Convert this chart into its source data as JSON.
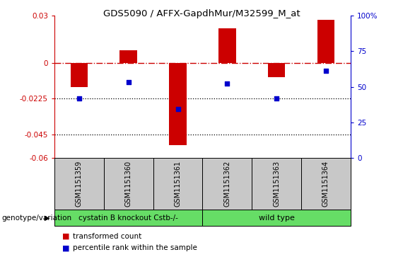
{
  "title": "GDS5090 / AFFX-GapdhMur/M32599_M_at",
  "samples": [
    "GSM1151359",
    "GSM1151360",
    "GSM1151361",
    "GSM1151362",
    "GSM1151363",
    "GSM1151364"
  ],
  "bar_values": [
    -0.015,
    0.008,
    -0.052,
    0.022,
    -0.009,
    0.027
  ],
  "dot_values_left": [
    -0.0225,
    -0.012,
    -0.029,
    -0.013,
    -0.0225,
    -0.005
  ],
  "bar_color": "#cc0000",
  "dot_color": "#0000cc",
  "ylim_left": [
    -0.06,
    0.03
  ],
  "ylim_right": [
    0,
    100
  ],
  "yticks_left": [
    0.03,
    0,
    -0.0225,
    -0.045,
    -0.06
  ],
  "ytick_labels_left": [
    "0.03",
    "0",
    "-0.0225",
    "-0.045",
    "-0.06"
  ],
  "yticks_right": [
    100,
    75,
    50,
    25,
    0
  ],
  "ytick_labels_right": [
    "100%",
    "75",
    "50",
    "25",
    "0"
  ],
  "hline_y": 0,
  "hline_color": "#cc0000",
  "hline_style": "-.",
  "dotted_lines": [
    -0.0225,
    -0.045
  ],
  "group1_label": "cystatin B knockout Cstb-/-",
  "group2_label": "wild type",
  "group1_color": "#c8c8c8",
  "group2_color": "#66dd66",
  "genotype_label": "genotype/variation",
  "legend_bar_label": "transformed count",
  "legend_dot_label": "percentile rank within the sample",
  "bar_width": 0.35,
  "title_fontsize": 9.5,
  "tick_fontsize": 7.5,
  "sample_fontsize": 7,
  "group_fontsize": 8,
  "legend_fontsize": 7.5
}
